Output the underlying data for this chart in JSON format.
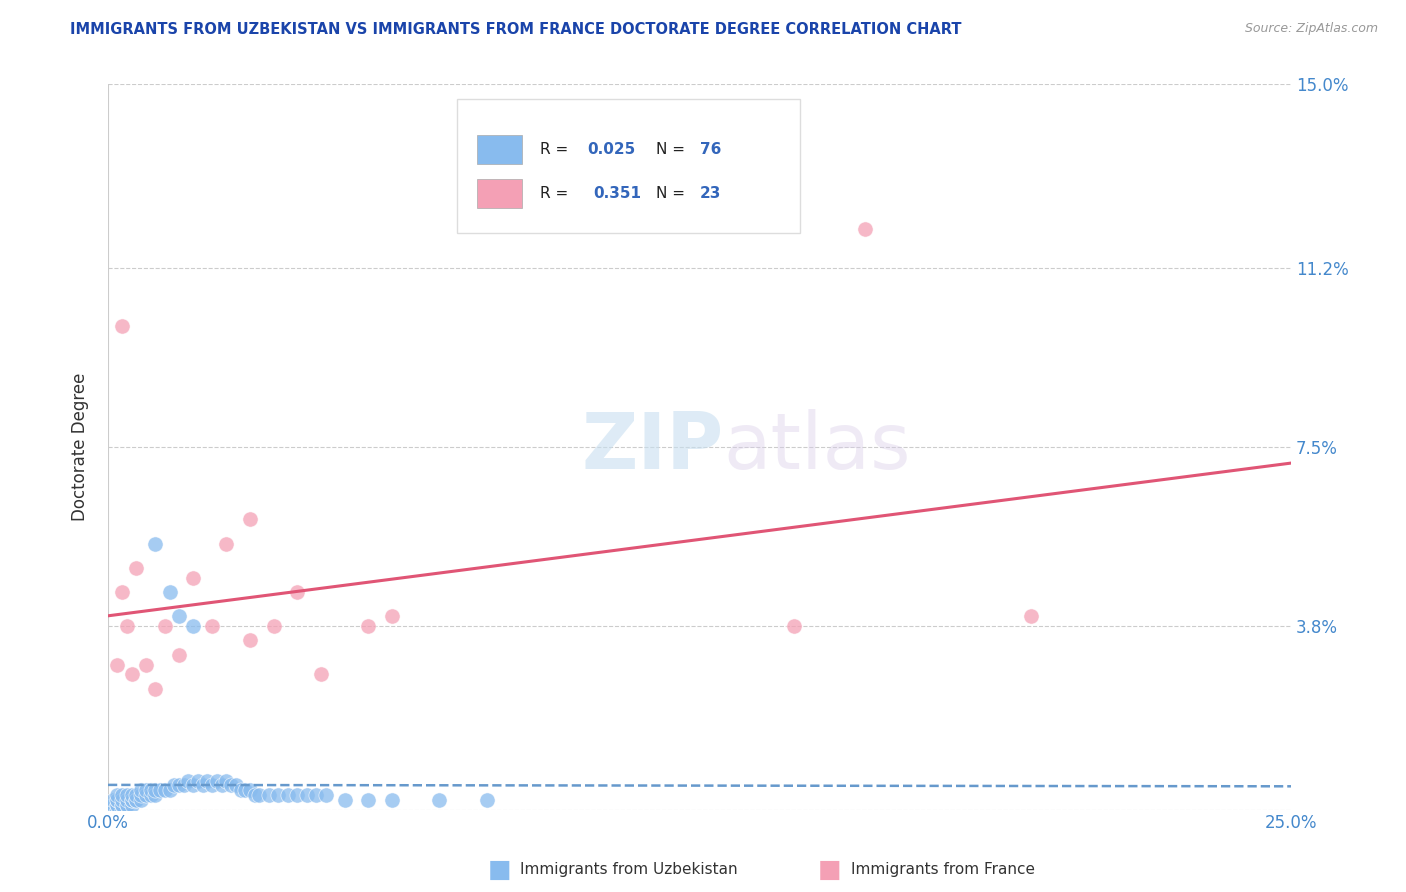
{
  "title": "IMMIGRANTS FROM UZBEKISTAN VS IMMIGRANTS FROM FRANCE DOCTORATE DEGREE CORRELATION CHART",
  "source_text": "Source: ZipAtlas.com",
  "ylabel": "Doctorate Degree",
  "xlim": [
    0.0,
    0.25
  ],
  "ylim": [
    0.0,
    0.15
  ],
  "yticks": [
    0.0,
    0.038,
    0.075,
    0.112,
    0.15
  ],
  "ytick_labels": [
    "",
    "3.8%",
    "7.5%",
    "11.2%",
    "15.0%"
  ],
  "xticks": [
    0.0,
    0.05,
    0.1,
    0.15,
    0.2,
    0.25
  ],
  "xtick_labels": [
    "0.0%",
    "",
    "",
    "",
    "",
    "25.0%"
  ],
  "watermark_zip": "ZIP",
  "watermark_atlas": "atlas",
  "legend_r1_label": "R = 0.025",
  "legend_n1_label": "N = 76",
  "legend_r2_label": "R =  0.351",
  "legend_n2_label": "N = 23",
  "color_uzbekistan": "#88bbee",
  "color_france": "#f4a0b5",
  "color_trend_uzbekistan": "#6699cc",
  "color_trend_france": "#e05575",
  "title_color": "#1a44aa",
  "tick_color": "#4488cc",
  "label_color": "#333333",
  "background_color": "#ffffff",
  "grid_color": "#cccccc",
  "legend_text_color": "#222222",
  "legend_value_color": "#3366bb",
  "uzbekistan_x": [
    0.001,
    0.001,
    0.001,
    0.001,
    0.001,
    0.001,
    0.002,
    0.002,
    0.002,
    0.002,
    0.002,
    0.002,
    0.002,
    0.003,
    0.003,
    0.003,
    0.003,
    0.003,
    0.004,
    0.004,
    0.004,
    0.004,
    0.005,
    0.005,
    0.005,
    0.005,
    0.006,
    0.006,
    0.006,
    0.007,
    0.007,
    0.007,
    0.008,
    0.008,
    0.009,
    0.009,
    0.01,
    0.01,
    0.011,
    0.012,
    0.013,
    0.014,
    0.015,
    0.016,
    0.017,
    0.018,
    0.019,
    0.02,
    0.021,
    0.022,
    0.023,
    0.024,
    0.025,
    0.026,
    0.027,
    0.028,
    0.029,
    0.03,
    0.031,
    0.032,
    0.034,
    0.036,
    0.038,
    0.04,
    0.042,
    0.044,
    0.046,
    0.05,
    0.055,
    0.06,
    0.07,
    0.08,
    0.01,
    0.013,
    0.015,
    0.018
  ],
  "uzbekistan_y": [
    0.0,
    0.0,
    0.0,
    0.001,
    0.001,
    0.002,
    0.0,
    0.0,
    0.001,
    0.001,
    0.002,
    0.002,
    0.003,
    0.0,
    0.001,
    0.001,
    0.002,
    0.003,
    0.001,
    0.001,
    0.002,
    0.003,
    0.001,
    0.002,
    0.002,
    0.003,
    0.002,
    0.002,
    0.003,
    0.002,
    0.003,
    0.004,
    0.003,
    0.004,
    0.003,
    0.004,
    0.003,
    0.004,
    0.004,
    0.004,
    0.004,
    0.005,
    0.005,
    0.005,
    0.006,
    0.005,
    0.006,
    0.005,
    0.006,
    0.005,
    0.006,
    0.005,
    0.006,
    0.005,
    0.005,
    0.004,
    0.004,
    0.004,
    0.003,
    0.003,
    0.003,
    0.003,
    0.003,
    0.003,
    0.003,
    0.003,
    0.003,
    0.002,
    0.002,
    0.002,
    0.002,
    0.002,
    0.055,
    0.045,
    0.04,
    0.038
  ],
  "france_x": [
    0.002,
    0.003,
    0.004,
    0.005,
    0.006,
    0.008,
    0.01,
    0.012,
    0.015,
    0.018,
    0.022,
    0.025,
    0.03,
    0.035,
    0.04,
    0.045,
    0.055,
    0.06,
    0.145,
    0.16,
    0.195,
    0.003,
    0.03
  ],
  "france_y": [
    0.03,
    0.045,
    0.038,
    0.028,
    0.05,
    0.03,
    0.025,
    0.038,
    0.032,
    0.048,
    0.038,
    0.055,
    0.035,
    0.038,
    0.045,
    0.028,
    0.038,
    0.04,
    0.038,
    0.12,
    0.04,
    0.1,
    0.06
  ]
}
